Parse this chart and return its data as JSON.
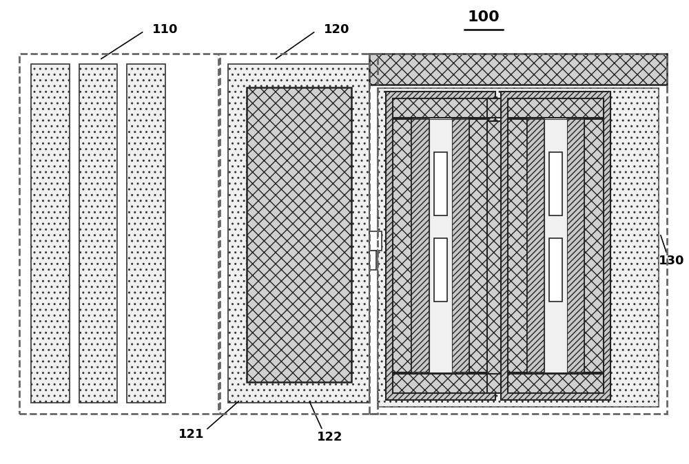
{
  "bg_color": "#ffffff",
  "title": "100",
  "label_110": "110",
  "label_120": "120",
  "label_121": "121",
  "label_122": "122",
  "label_130": "130",
  "dot_fc": "#f0f0f0",
  "cross_fc": "#d0d0d0",
  "diag_fc": "#c8c8c8",
  "white": "#ffffff",
  "edge_dark": "#222222",
  "edge_med": "#333333",
  "dash_color": "#555555"
}
